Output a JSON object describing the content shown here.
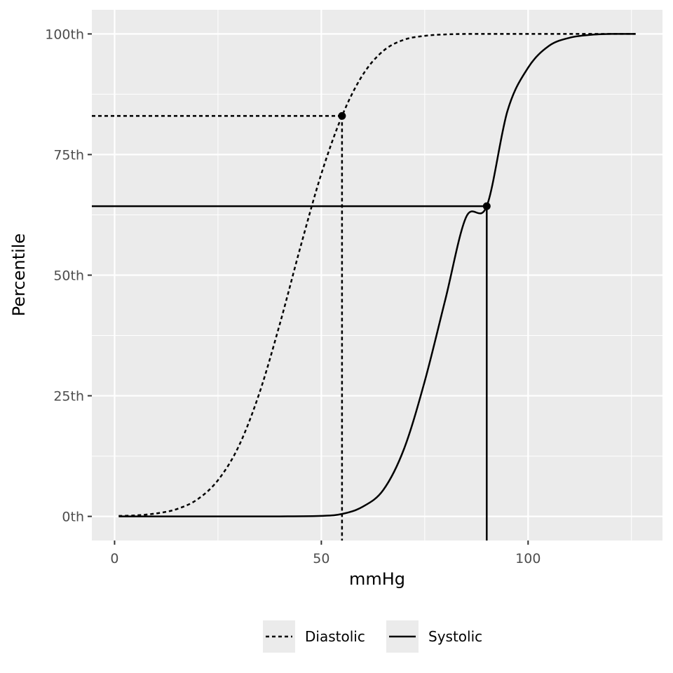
{
  "chart_data": {
    "type": "line",
    "xlabel": "mmHg",
    "ylabel": "Percentile",
    "xlim": [
      -5.5,
      132.5
    ],
    "ylim": [
      -5,
      105
    ],
    "x_ticks": [
      0,
      50,
      100
    ],
    "x_tick_labels": [
      "0",
      "50",
      "100"
    ],
    "y_ticks": [
      0,
      25,
      50,
      75,
      100
    ],
    "y_tick_labels": [
      "0th",
      "25th",
      "50th",
      "75th",
      "100th"
    ],
    "grid": true,
    "legend_position": "bottom",
    "series": [
      {
        "name": "Diastolic",
        "line_style": "dashed",
        "x": [
          1,
          5,
          10,
          15,
          20,
          25,
          30,
          35,
          40,
          45,
          50,
          55,
          60,
          65,
          70,
          75,
          80,
          85,
          90,
          95,
          100,
          105,
          110,
          115,
          120,
          126
        ],
        "y": [
          0.1,
          0.2,
          0.6,
          1.5,
          3.5,
          7.5,
          14.5,
          25.5,
          40,
          56,
          71,
          83,
          91.5,
          96.5,
          98.8,
          99.6,
          99.9,
          100,
          100,
          100,
          100,
          100,
          100,
          100,
          100,
          100
        ]
      },
      {
        "name": "Systolic",
        "line_style": "solid",
        "x": [
          1,
          10,
          20,
          30,
          40,
          50,
          55,
          60,
          65,
          70,
          75,
          80,
          85,
          90,
          95,
          100,
          105,
          110,
          115,
          120,
          126
        ],
        "y": [
          0,
          0,
          0,
          0,
          0,
          0.1,
          0.5,
          2,
          5.5,
          14,
          28,
          45,
          62,
          64.3,
          84,
          93,
          97.5,
          99.2,
          99.8,
          100,
          100
        ]
      }
    ],
    "highlight_points": [
      {
        "series": "Diastolic",
        "x": 55,
        "y": 83
      },
      {
        "series": "Systolic",
        "x": 90,
        "y": 64.3
      }
    ]
  }
}
